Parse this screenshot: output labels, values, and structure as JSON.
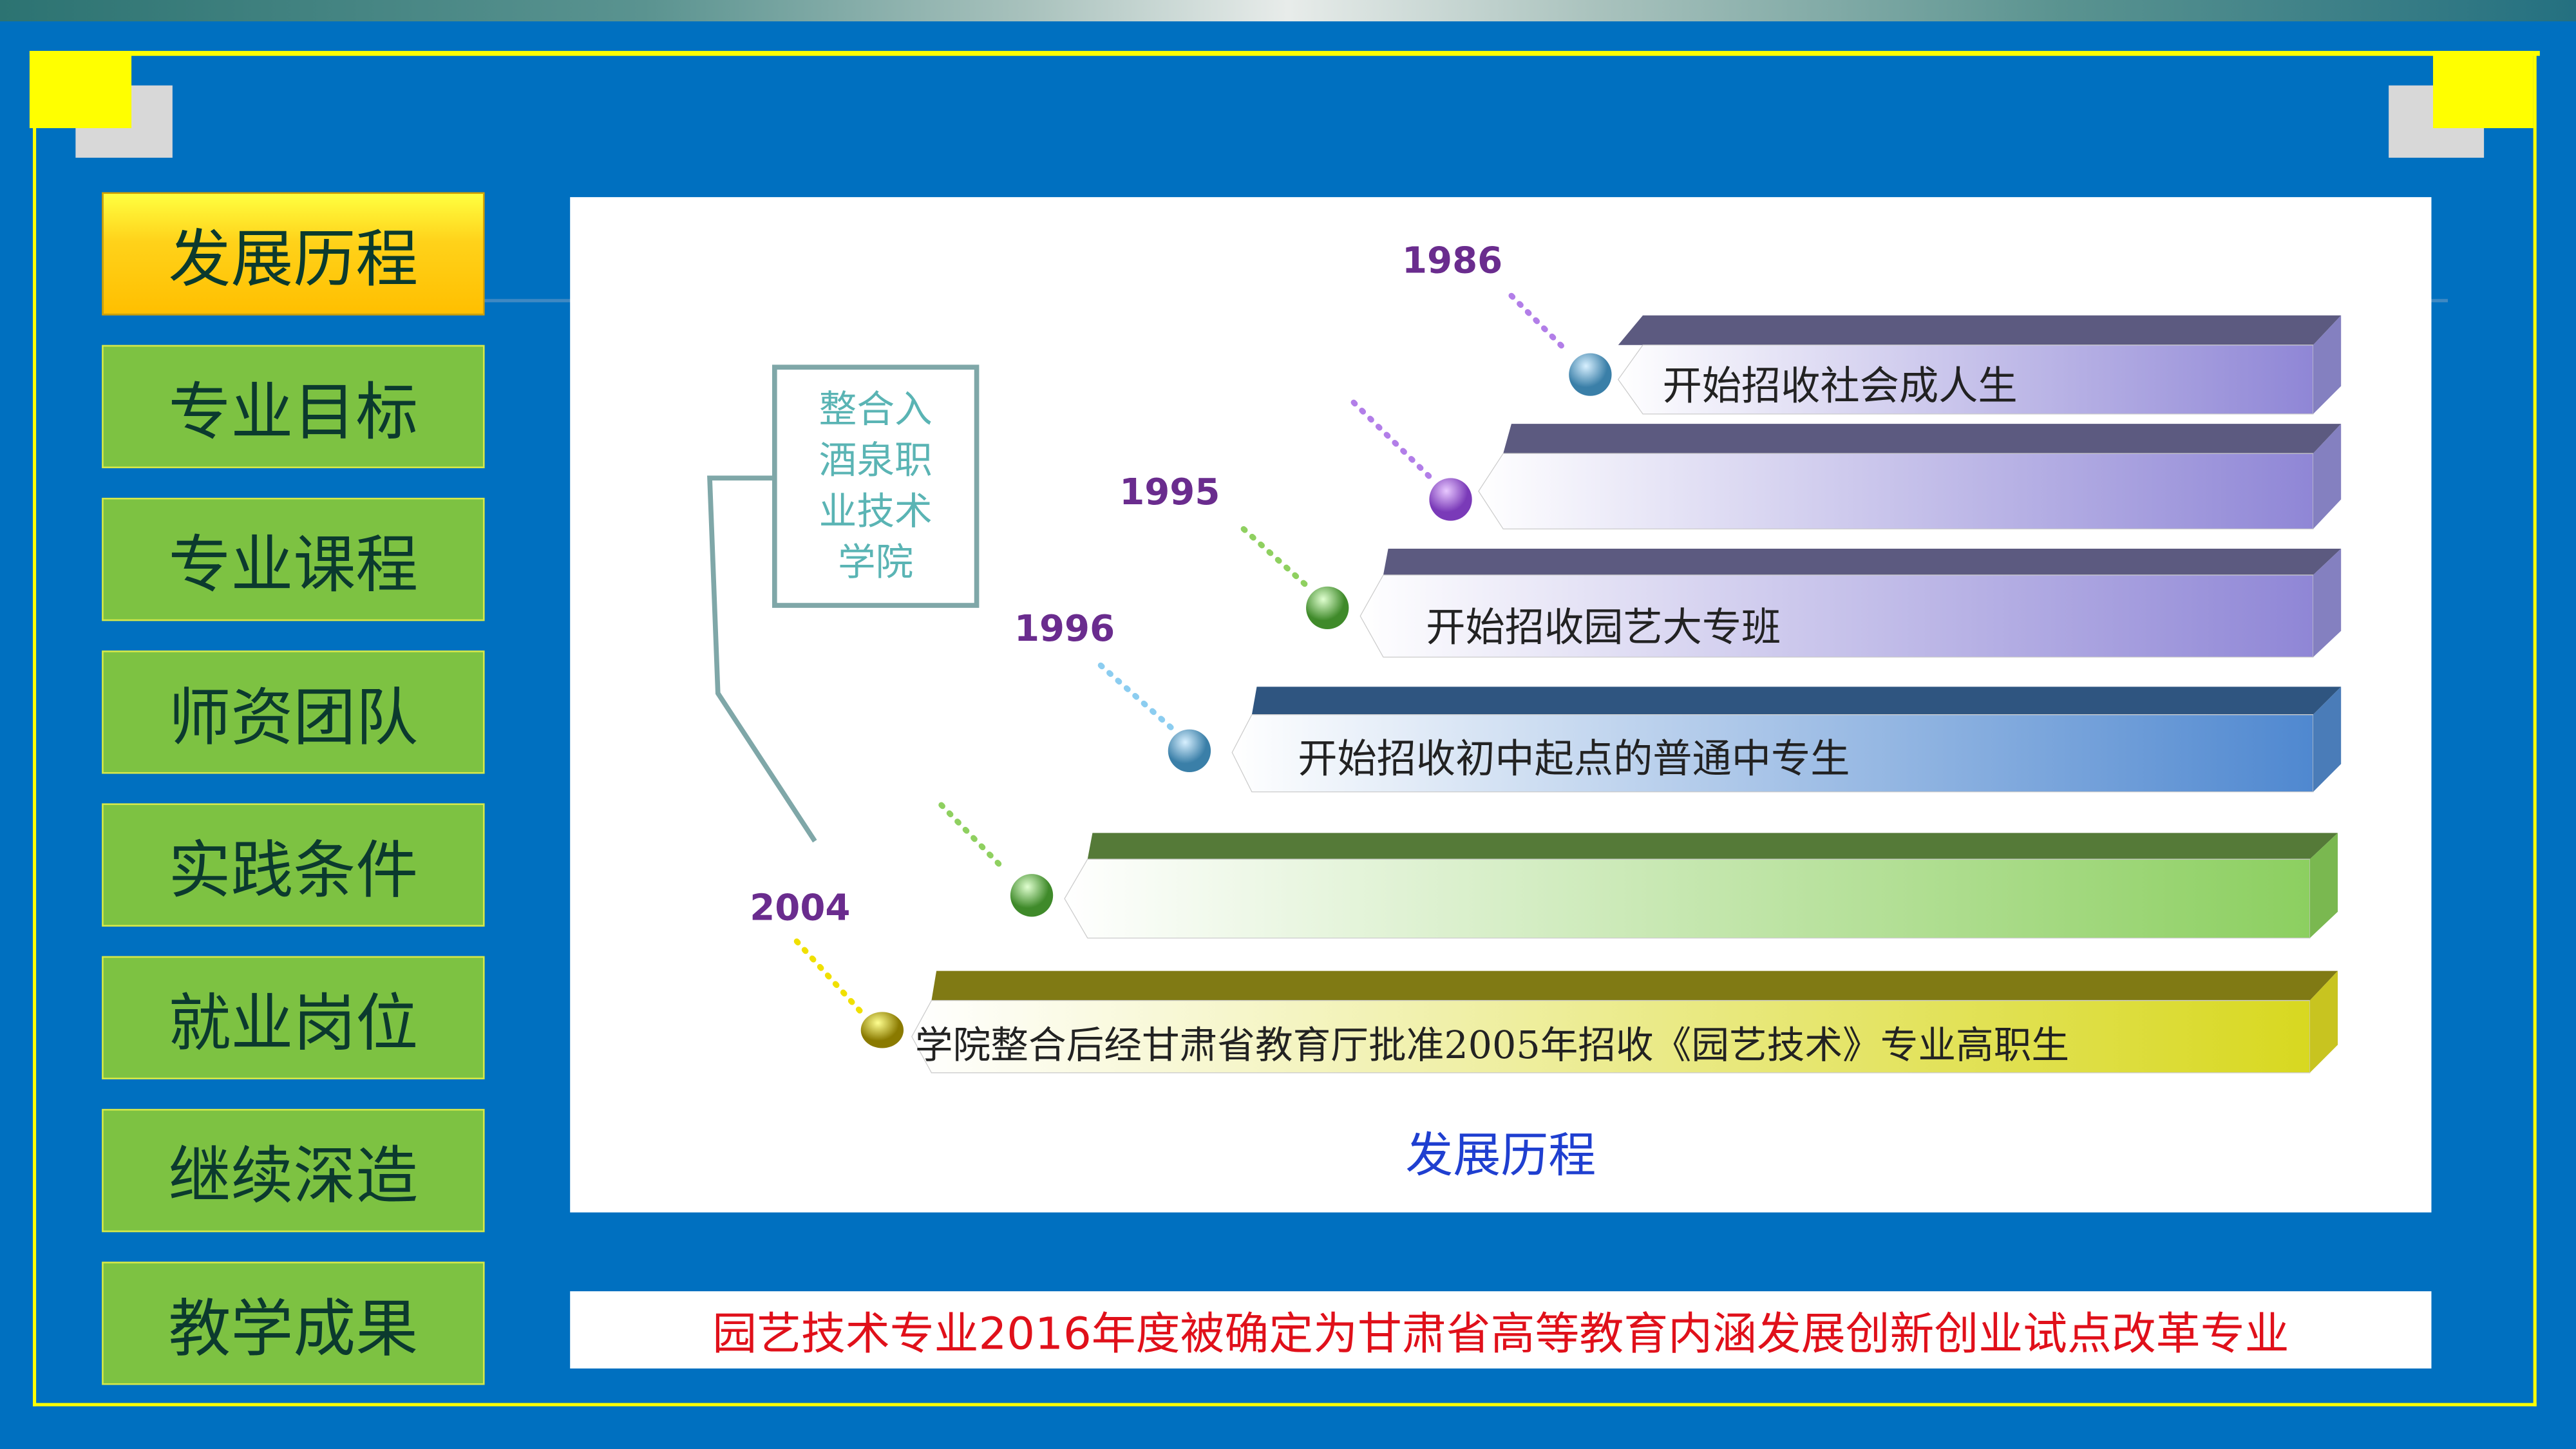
{
  "sidebar": {
    "items": [
      {
        "label": "发展历程",
        "active": true
      },
      {
        "label": "专业目标"
      },
      {
        "label": "专业课程"
      },
      {
        "label": "师资团队"
      },
      {
        "label": "实践条件"
      },
      {
        "label": "就业岗位"
      },
      {
        "label": "继续深造"
      },
      {
        "label": "教学成果"
      }
    ]
  },
  "timeline": {
    "box_lines": [
      "整合入",
      "酒泉职",
      "业技术",
      "学院"
    ],
    "years": [
      "1986",
      "1995",
      "1996",
      "2004"
    ],
    "bars": [
      {
        "text": "开始招收社会成人生",
        "color": "#8f86d6"
      },
      {
        "text": "",
        "color": "#8f86d6"
      },
      {
        "text": "开始招收园艺大专班",
        "color": "#8f86d6"
      },
      {
        "text": "开始招收初中起点的普通中专生",
        "color": "#4f88d0"
      },
      {
        "text": "",
        "color": "#8ccf60"
      },
      {
        "text": "学院整合后经甘肃省教育厅批准2005年招收《园艺技术》专业高职生",
        "color": "#d8d820"
      }
    ],
    "caption": "发展历程"
  },
  "banner": {
    "text": "园艺技术专业2016年度被确定为甘肃省高等教育内涵发展创新创业试点改革专业"
  },
  "colors": {
    "background": "#0070c0",
    "frame": "#ffff00",
    "banner_text": "#e0101a",
    "year": "#6a2c8e"
  }
}
